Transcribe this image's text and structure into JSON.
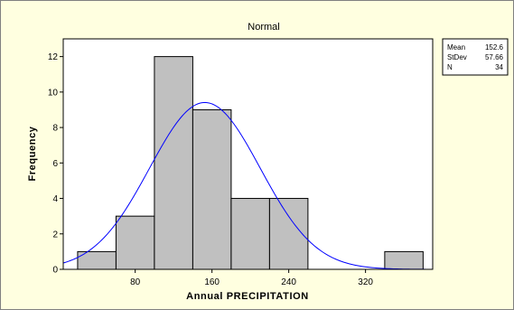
{
  "chart_data": {
    "type": "bar",
    "title": "Normal",
    "xlabel": "Annual PRECIPITATION",
    "ylabel": "Frequency",
    "bins": [
      {
        "start": 20,
        "end": 60,
        "count": 1
      },
      {
        "start": 60,
        "end": 100,
        "count": 3
      },
      {
        "start": 100,
        "end": 140,
        "count": 12
      },
      {
        "start": 140,
        "end": 180,
        "count": 9
      },
      {
        "start": 180,
        "end": 220,
        "count": 4
      },
      {
        "start": 220,
        "end": 260,
        "count": 4
      },
      {
        "start": 260,
        "end": 300,
        "count": 0
      },
      {
        "start": 300,
        "end": 340,
        "count": 0
      },
      {
        "start": 340,
        "end": 380,
        "count": 1
      }
    ],
    "x_ticks": [
      80,
      160,
      240,
      320
    ],
    "y_ticks": [
      0,
      2,
      4,
      6,
      8,
      10,
      12
    ],
    "xlim": [
      5,
      390
    ],
    "ylim": [
      0,
      13
    ],
    "fit": {
      "type": "normal",
      "mean": 152.6,
      "stdev": 57.66,
      "n": 34,
      "bin_width": 40
    },
    "stats_legend": {
      "rows": [
        {
          "label": "Mean",
          "value": "152.6"
        },
        {
          "label": "StDev",
          "value": "57.66"
        },
        {
          "label": "N",
          "value": "34"
        }
      ],
      "placement": "right"
    },
    "grid": false
  },
  "colors": {
    "frame_background": "#ffffe0",
    "plot_background": "#ffffff",
    "bar_fill": "#c0c0c0",
    "bar_stroke": "#000000",
    "fit_line": "#0000ff"
  }
}
